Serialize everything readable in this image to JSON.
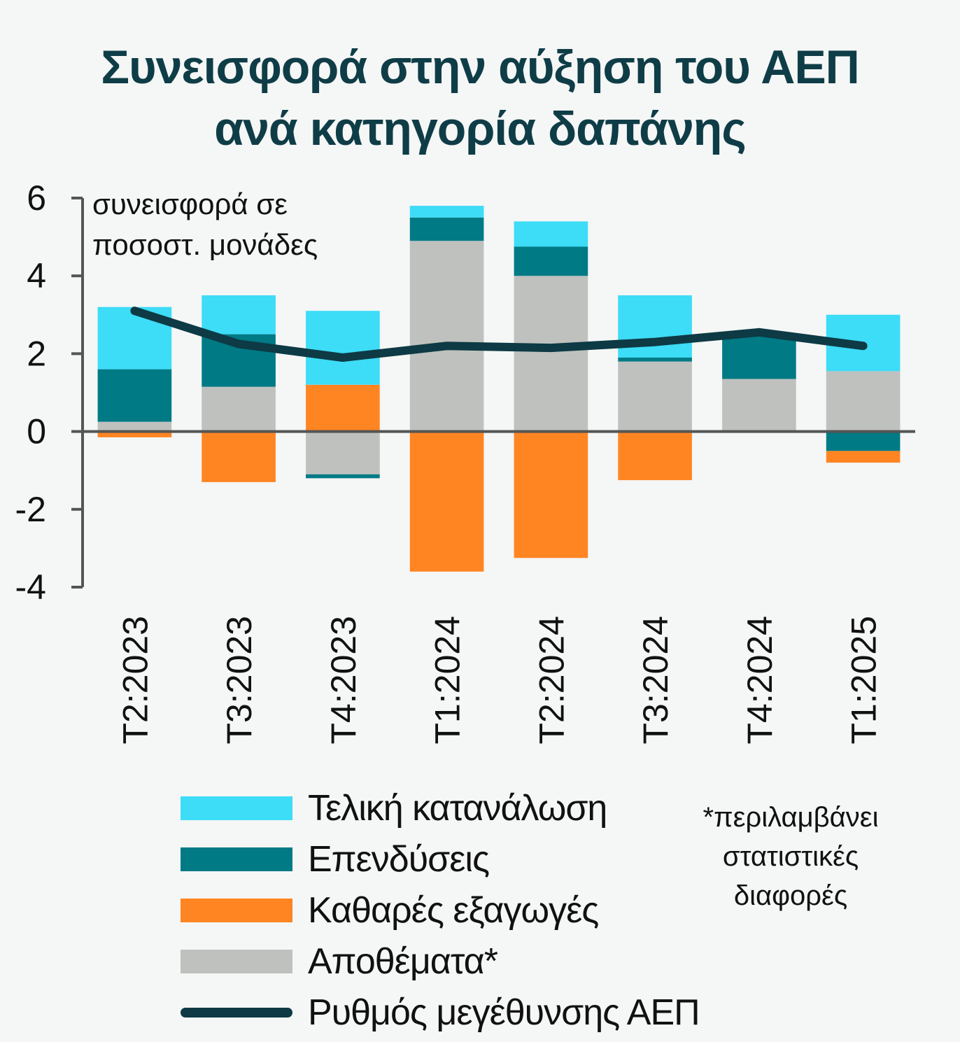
{
  "title_lines": [
    "Συνεισφορά στην αύξηση του ΑΕΠ",
    "ανά κατηγορία δαπάνης"
  ],
  "y_unit_lines": [
    "συνεισφορά σε",
    "ποσοστ. μονάδες"
  ],
  "note_lines": [
    "*περιλαμβάνει",
    "στατιστικές",
    "διαφορές"
  ],
  "colors": {
    "final_consumption": "#3ddcf7",
    "investment": "#007a85",
    "net_exports": "#ff8522",
    "inventories": "#bfc1be",
    "gdp_line": "#0d3a44",
    "axis": "#555555",
    "title": "#0f3d47"
  },
  "chart_data": {
    "type": "bar",
    "stacked": true,
    "categories": [
      "Τ2:2023",
      "Τ3:2023",
      "Τ4:2023",
      "Τ1:2024",
      "Τ2:2024",
      "Τ3:2024",
      "Τ4:2024",
      "Τ1:2025"
    ],
    "yticks": [
      6,
      4,
      2,
      0,
      -2,
      -4
    ],
    "ylim": [
      -4,
      6
    ],
    "series": [
      {
        "name": "Αποθέματα*",
        "key": "inventories",
        "values": [
          0.25,
          1.15,
          -1.1,
          4.9,
          4.0,
          1.8,
          1.35,
          1.55
        ]
      },
      {
        "name": "Επενδύσεις",
        "key": "investment",
        "values": [
          1.35,
          1.35,
          -0.1,
          0.6,
          0.75,
          0.1,
          1.15,
          -0.5
        ]
      },
      {
        "name": "Καθαρές εξαγωγές",
        "key": "net_exports",
        "values": [
          -0.15,
          -1.3,
          1.2,
          -3.6,
          -3.25,
          -1.25,
          0.0,
          -0.3
        ]
      },
      {
        "name": "Τελική κατανάλωση",
        "key": "final_consumption",
        "values": [
          1.6,
          1.0,
          1.9,
          0.3,
          0.65,
          1.6,
          0.0,
          1.45
        ]
      },
      {
        "name": "Ρυθμός μεγέθυνσης ΑΕΠ",
        "key": "gdp_line",
        "type": "line",
        "values": [
          3.1,
          2.25,
          1.9,
          2.2,
          2.15,
          2.3,
          2.55,
          2.2
        ]
      }
    ],
    "legend_order": [
      "Τελική κατανάλωση",
      "Επενδύσεις",
      "Καθαρές εξαγωγές",
      "Αποθέματα*",
      "Ρυθμός μεγέθυνσης ΑΕΠ"
    ]
  }
}
